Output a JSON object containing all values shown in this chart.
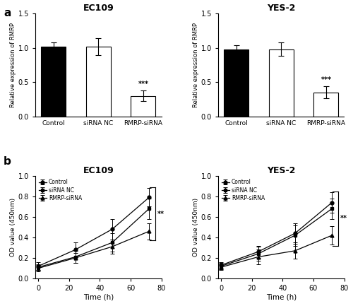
{
  "panel_a_title_left": "EC109",
  "panel_a_title_right": "YES-2",
  "panel_b_title_left": "EC109",
  "panel_b_title_right": "YES-2",
  "panel_a_label": "a",
  "panel_b_label": "b",
  "bar_ylabel": "Relative expression of RMRP",
  "bar_xlabel_categories": [
    "Control",
    "siRNA NC",
    "RMRP-siRNA"
  ],
  "bar_ylim": [
    0,
    1.5
  ],
  "bar_yticks": [
    0.0,
    0.5,
    1.0,
    1.5
  ],
  "ec109_bar_values": [
    1.02,
    1.02,
    0.3
  ],
  "ec109_bar_errors": [
    0.06,
    0.12,
    0.08
  ],
  "ec109_bar_colors": [
    "#000000",
    "#ffffff",
    "#ffffff"
  ],
  "yes2_bar_values": [
    0.98,
    0.98,
    0.35
  ],
  "yes2_bar_errors": [
    0.06,
    0.1,
    0.09
  ],
  "yes2_bar_colors": [
    "#000000",
    "#ffffff",
    "#ffffff"
  ],
  "bar_edgecolor": "#000000",
  "significance_bar": "***",
  "line_ylabel": "OD value (450nm)",
  "line_xlabel": "Time (h)",
  "line_xlim": [
    -2,
    80
  ],
  "line_ylim": [
    0,
    1.0
  ],
  "line_yticks": [
    0.0,
    0.2,
    0.4,
    0.6,
    0.8,
    1.0
  ],
  "line_xticks": [
    0,
    20,
    40,
    60,
    80
  ],
  "time_points": [
    0,
    24,
    48,
    72
  ],
  "ec109_control": [
    0.12,
    0.28,
    0.48,
    0.79
  ],
  "ec109_control_err": [
    0.04,
    0.07,
    0.1,
    0.09
  ],
  "ec109_sirnc": [
    0.11,
    0.21,
    0.35,
    0.68
  ],
  "ec109_sirnc_err": [
    0.03,
    0.06,
    0.09,
    0.1
  ],
  "ec109_rmrp": [
    0.1,
    0.2,
    0.31,
    0.46
  ],
  "ec109_rmrp_err": [
    0.03,
    0.05,
    0.07,
    0.08
  ],
  "yes2_control": [
    0.13,
    0.26,
    0.44,
    0.74
  ],
  "yes2_control_err": [
    0.03,
    0.06,
    0.1,
    0.1
  ],
  "yes2_sirnc": [
    0.12,
    0.24,
    0.42,
    0.68
  ],
  "yes2_sirnc_err": [
    0.03,
    0.07,
    0.1,
    0.1
  ],
  "yes2_rmrp": [
    0.11,
    0.21,
    0.27,
    0.42
  ],
  "yes2_rmrp_err": [
    0.03,
    0.07,
    0.08,
    0.09
  ],
  "legend_labels": [
    "Control",
    "siRNA NC",
    "RMRP-siRNA"
  ],
  "line_significance": "**",
  "bg_color": "#ffffff",
  "text_color": "#000000"
}
